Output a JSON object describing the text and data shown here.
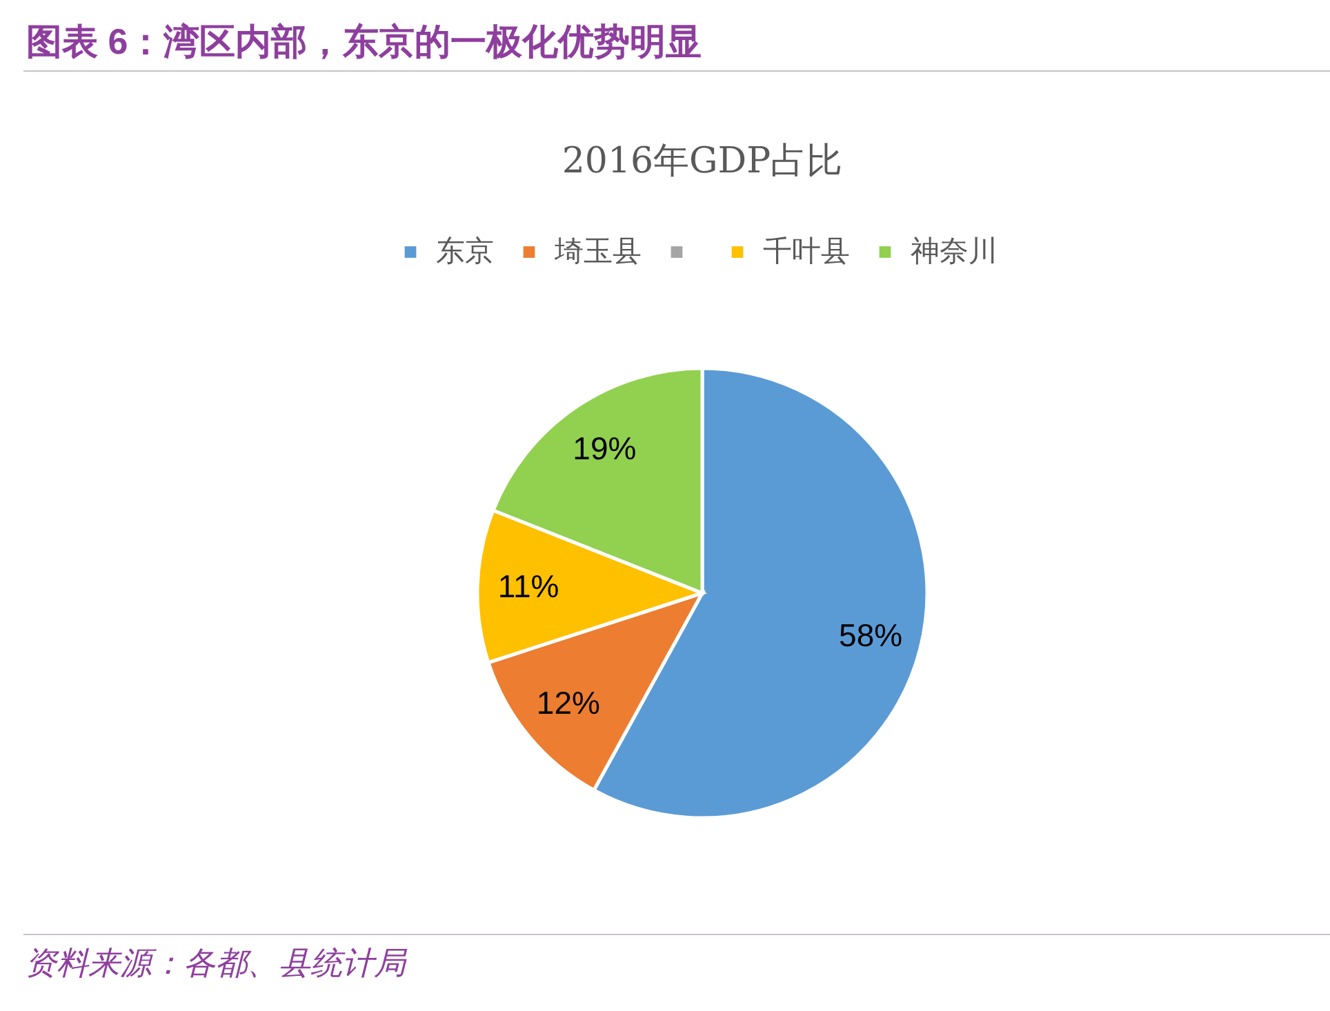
{
  "chart_data": {
    "type": "pie",
    "title": "图表 6：湾区内部，东京的一极化优势明显",
    "subtitle": "2016年GDP占比",
    "categories": [
      "东京",
      "埼玉县",
      null,
      "千叶县",
      "神奈川"
    ],
    "values": [
      58,
      12,
      null,
      11,
      19
    ],
    "colors": [
      "#5b9bd5",
      "#ed7d31",
      "#a5a5a5",
      "#ffc000",
      "#92d050"
    ],
    "value_labels": [
      "58%",
      "12%",
      null,
      "11%",
      "19%"
    ],
    "legend": "top",
    "annotations": [
      "资料来源：各都、县统计局"
    ]
  }
}
